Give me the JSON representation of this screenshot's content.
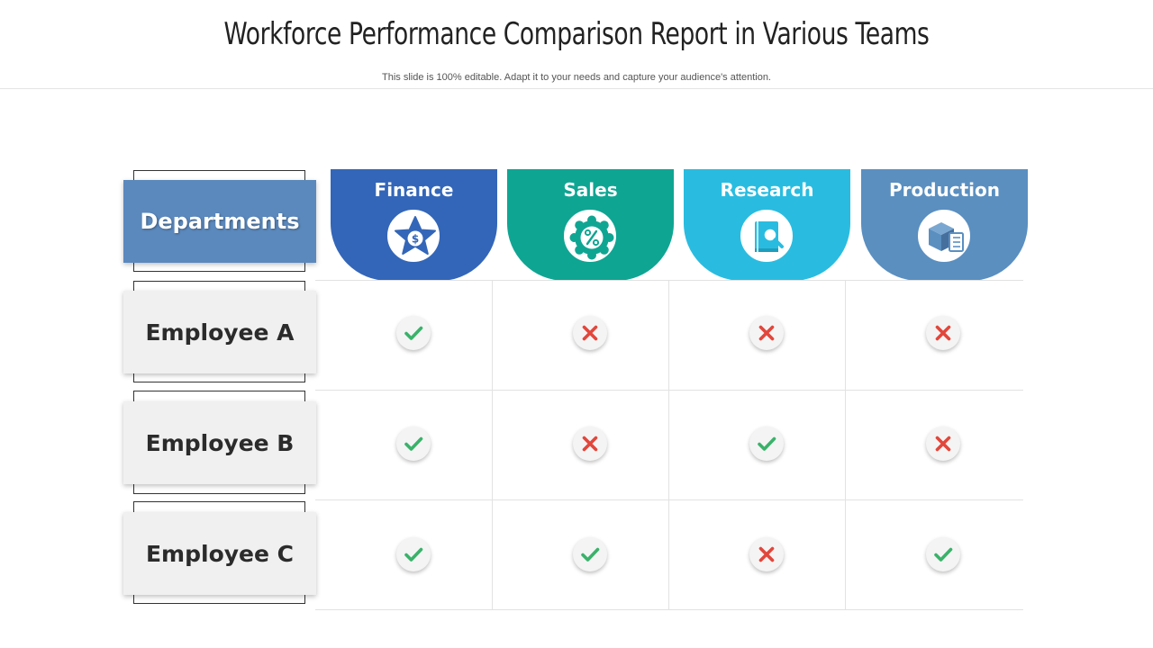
{
  "header": {
    "title": "Workforce Performance Comparison Report in Various Teams",
    "subtitle": "This slide is 100% editable. Adapt it to your needs and capture  your audience's attention."
  },
  "table": {
    "corner_label": "Departments",
    "departments": [
      {
        "name": "Finance",
        "icon": "star-dollar-icon",
        "color": "#3366b8"
      },
      {
        "name": "Sales",
        "icon": "percent-badge-icon",
        "color": "#0fa593"
      },
      {
        "name": "Research",
        "icon": "book-search-icon",
        "color": "#29bce0"
      },
      {
        "name": "Production",
        "icon": "box-checklist-icon",
        "color": "#5a8fc0"
      }
    ],
    "rows": [
      {
        "label": "Employee A",
        "marks": [
          "check",
          "cross",
          "cross",
          "cross"
        ]
      },
      {
        "label": "Employee B",
        "marks": [
          "check",
          "cross",
          "check",
          "cross"
        ]
      },
      {
        "label": "Employee C",
        "marks": [
          "check",
          "check",
          "cross",
          "check"
        ]
      }
    ]
  },
  "colors": {
    "check": "#3ab26a",
    "cross": "#e2463b",
    "department_label_bg": "#5b89bd",
    "employee_label_bg": "#f0f0f0"
  }
}
